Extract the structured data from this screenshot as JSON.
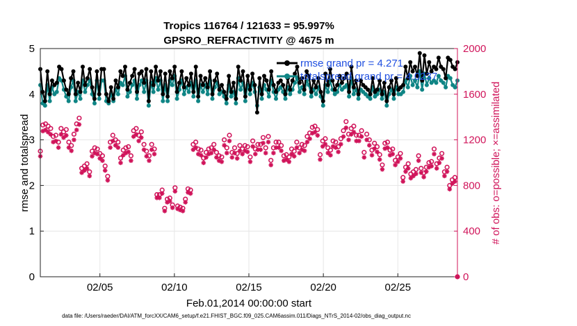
{
  "chart_data": {
    "type": "line",
    "title_line1": "Tropics 116764 / 121633 = 95.997%",
    "title_line2": "GPSRO_REFRACTIVITY @ 4675 m",
    "xlabel": "Feb.01,2014 00:00:00 start",
    "ylabel": "rmse and totalspread",
    "ylabel_right": "# of obs: o=possible; ×=assimilated",
    "xlim": [
      1,
      29
    ],
    "ylim": [
      0,
      5
    ],
    "ylim_right": [
      0,
      2000
    ],
    "x_ticks": [
      5,
      10,
      15,
      20,
      25
    ],
    "x_tick_labels": [
      "02/05",
      "02/10",
      "02/15",
      "02/20",
      "02/25"
    ],
    "y_ticks": [
      0,
      1,
      2,
      3,
      4,
      5
    ],
    "y_tick_labels": [
      "0",
      "1",
      "2",
      "3",
      "4",
      "5"
    ],
    "y_right_ticks": [
      0,
      400,
      800,
      1200,
      1600,
      2000
    ],
    "y_right_tick_labels": [
      "0",
      "400",
      "800",
      "1200",
      "1600",
      "2000"
    ],
    "legend": [
      {
        "name": "rmse grand pr = 4.271",
        "color": "#000000"
      },
      {
        "name": "totalspread grand pr = 4.0237",
        "color": "#0f8585"
      }
    ],
    "footnote": "data file: /Users/raeder/DAI/ATM_forcXX/CAM6_setup/f.e21.FHIST_BGC.f09_025.CAM6assim.011/Diags_NTrS_2014-02/obs_diag_output.nc",
    "colors": {
      "rmse": "#000000",
      "spread": "#0f8585",
      "obs": "#d0145a"
    },
    "series": [
      {
        "name": "rmse",
        "values": [
          4.55,
          4.05,
          3.85,
          4.5,
          4.0,
          4.3,
          4.2,
          4.25,
          4.6,
          4.55,
          4.3,
          4.1,
          4.0,
          4.35,
          4.5,
          4.0,
          4.25,
          4.05,
          4.6,
          4.2,
          4.35,
          4.55,
          4.15,
          3.9,
          4.5,
          4.0,
          4.55,
          4.55,
          4.0,
          3.85,
          4.15,
          3.9,
          4.3,
          4.15,
          4.5,
          4.4,
          4.6,
          4.1,
          4.25,
          4.4,
          4.55,
          4.05,
          4.45,
          4.5,
          4.25,
          4.55,
          3.85,
          4.5,
          4.2,
          4.6,
          4.3,
          4.5,
          4.0,
          4.45,
          3.95,
          4.5,
          4.35,
          4.6,
          4.05,
          4.25,
          4.5,
          4.15,
          4.35,
          4.2,
          4.45,
          4.05,
          4.6,
          3.95,
          4.4,
          4.2,
          4.35,
          4.15,
          4.5,
          4.0,
          4.3,
          4.45,
          4.1,
          4.2,
          4.05,
          3.9,
          4.4,
          4.05,
          4.25,
          3.9,
          4.6,
          4.3,
          4.5,
          3.95,
          4.4,
          4.1,
          4.45,
          4.2,
          3.6,
          4.35,
          4.0,
          4.4,
          4.3,
          4.1,
          4.5,
          4.2,
          4.05,
          4.25,
          4.3,
          4.2,
          4.0,
          4.35,
          4.1,
          4.3,
          4.45,
          4.6,
          4.25,
          4.35,
          4.1,
          4.5,
          4.4,
          4.05,
          4.3,
          4.15,
          4.35,
          4.05,
          3.85,
          4.45,
          4.2,
          4.55,
          4.3,
          4.1,
          4.2,
          4.4,
          4.25,
          4.35,
          4.45,
          4.05,
          4.6,
          4.15,
          4.3,
          4.0,
          4.3,
          4.2,
          4.15,
          4.1,
          4.0,
          4.35,
          4.05,
          4.1,
          4.3,
          4.0,
          4.25,
          3.85,
          4.15,
          4.3,
          4.0,
          4.35,
          4.1,
          4.15,
          4.2,
          4.6,
          4.35,
          4.7,
          4.5,
          4.6,
          4.4,
          4.9,
          4.3,
          4.85,
          4.45,
          4.7,
          4.5,
          4.6,
          4.55,
          4.8,
          4.6,
          4.55,
          4.35,
          4.8,
          4.75,
          4.6,
          4.55,
          4.7
        ]
      },
      {
        "name": "totalspread",
        "values": [
          4.2,
          3.8,
          3.75,
          4.2,
          3.85,
          4.15,
          4.0,
          4.05,
          4.35,
          4.3,
          4.1,
          3.95,
          3.85,
          4.15,
          4.3,
          3.85,
          4.05,
          3.9,
          4.3,
          4.05,
          4.2,
          4.3,
          4.0,
          3.8,
          4.3,
          3.9,
          4.3,
          4.3,
          3.85,
          3.8,
          4.0,
          3.85,
          4.1,
          4.0,
          4.25,
          4.2,
          4.4,
          3.95,
          4.05,
          4.2,
          4.3,
          3.9,
          4.2,
          4.3,
          4.05,
          4.3,
          3.75,
          4.25,
          4.05,
          4.35,
          4.1,
          4.3,
          3.85,
          4.2,
          3.85,
          4.3,
          4.2,
          4.4,
          3.9,
          4.1,
          4.3,
          4.0,
          4.15,
          4.05,
          4.25,
          3.95,
          4.3,
          3.85,
          4.2,
          4.05,
          4.2,
          4.0,
          4.3,
          3.9,
          4.15,
          4.25,
          4.0,
          4.05,
          3.95,
          3.8,
          4.2,
          3.95,
          4.05,
          3.8,
          4.35,
          4.1,
          4.25,
          3.85,
          4.2,
          4.0,
          4.25,
          4.05,
          3.75,
          4.15,
          3.9,
          4.2,
          4.1,
          3.95,
          4.3,
          4.05,
          3.9,
          4.1,
          4.15,
          4.05,
          3.9,
          4.15,
          4.0,
          4.1,
          4.25,
          4.35,
          4.05,
          4.15,
          4.0,
          4.3,
          4.2,
          3.95,
          4.1,
          4.0,
          4.15,
          3.95,
          3.75,
          4.2,
          4.05,
          4.3,
          4.1,
          4.0,
          4.05,
          4.2,
          4.1,
          4.15,
          4.2,
          3.95,
          4.35,
          4.0,
          4.1,
          3.9,
          4.1,
          4.05,
          4.0,
          3.95,
          3.9,
          4.15,
          3.95,
          4.0,
          4.1,
          3.9,
          4.05,
          3.75,
          4.0,
          4.1,
          3.9,
          4.15,
          4.0,
          4.0,
          4.05,
          4.3,
          4.15,
          4.4,
          4.2,
          4.3,
          4.15,
          4.5,
          4.1,
          4.45,
          4.2,
          4.35,
          4.25,
          4.3,
          4.25,
          4.4,
          4.3,
          4.25,
          4.15,
          4.4,
          4.35,
          4.2,
          4.15,
          4.3
        ]
      }
    ],
    "obs_possible": [
      1100,
      1330,
      1340,
      1320,
      1300,
      1230,
      1240,
      1180,
      1300,
      1270,
      1290,
      1180,
      1150,
      1250,
      1340,
      1390,
      950,
      970,
      990,
      920,
      1100,
      1130,
      1120,
      1080,
      1060,
      970,
      880,
      1180,
      1240,
      1200,
      1180,
      1040,
      1110,
      1130,
      1140,
      1060,
      1280,
      1300,
      1240,
      1270,
      1160,
      1100,
      1060,
      1160,
      1120,
      720,
      720,
      760,
      600,
      680,
      690,
      630,
      780,
      620,
      610,
      600,
      680,
      770,
      760,
      1160,
      1180,
      1120,
      1110,
      1040,
      1090,
      1120,
      1130,
      1160,
      1090,
      1060,
      1050,
      1200,
      1130,
      1240,
      1090,
      1130,
      1080,
      1150,
      1120,
      1150,
      1140,
      1050,
      1190,
      1120,
      1160,
      1160,
      1220,
      1130,
      1230,
      1020,
      1130,
      1180,
      1180,
      1150,
      1060,
      1070,
      1050,
      1120,
      1100,
      1180,
      1130,
      1160,
      1150,
      1230,
      1260,
      1310,
      1320,
      1290,
      1070,
      1190,
      1210,
      1130,
      1110,
      1190,
      1180,
      1140,
      1210,
      1280,
      1360,
      1250,
      1300,
      1320,
      1240,
      1240,
      1280,
      1090,
      1250,
      1200,
      1110,
      1170,
      1140,
      1070,
      980,
      1170,
      1180,
      1110,
      1120,
      1020,
      1050,
      1080,
      870,
      960,
      990,
      900,
      920,
      940,
      1060,
      950,
      910,
      960,
      1000,
      1010,
      1120,
      990,
      1040,
      1080,
      920,
      960,
      800,
      850,
      870,
      0
    ]
  }
}
